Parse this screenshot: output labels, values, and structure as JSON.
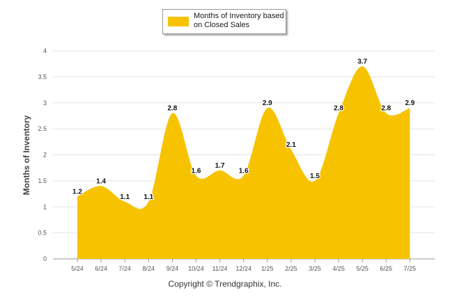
{
  "chart_data": {
    "type": "area",
    "categories": [
      "5/24",
      "6/24",
      "7/24",
      "8/24",
      "9/24",
      "10/24",
      "11/24",
      "12/24",
      "1/25",
      "2/25",
      "3/25",
      "4/25",
      "5/25",
      "6/25",
      "7/25"
    ],
    "series": [
      {
        "name": "Months of Inventory based on Closed Sales",
        "values": [
          1.2,
          1.4,
          1.1,
          1.1,
          2.8,
          1.6,
          1.7,
          1.6,
          2.9,
          2.1,
          1.5,
          2.8,
          3.7,
          2.8,
          2.9
        ],
        "labels": [
          "1.2",
          "1.4",
          "1.1",
          "1.1",
          "2.8",
          "1.6",
          "1.7",
          "1.6",
          "2.9",
          "2.1",
          "1.5",
          "2.8",
          "3.7",
          "2.8",
          "2.9"
        ],
        "color": "#f7c300"
      }
    ],
    "ylabel": "Months of Inventory",
    "xlabel": "",
    "ylim": [
      0,
      4
    ],
    "yticks": [
      "0",
      "0.5",
      "1",
      "1.5",
      "2",
      "2.5",
      "3",
      "3.5",
      "4"
    ],
    "grid": true,
    "legend": "top-center"
  },
  "legend": {
    "line1": "Months of Inventory based",
    "line2": "on Closed Sales",
    "color": "#f7c300"
  },
  "footer": {
    "text": "Copyright © Trendgraphix, Inc."
  }
}
